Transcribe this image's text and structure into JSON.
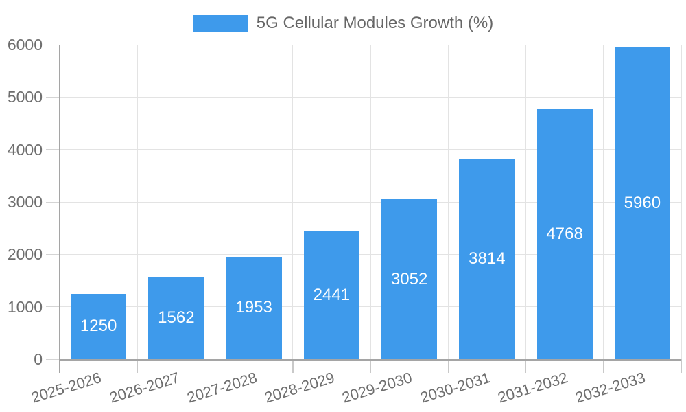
{
  "legend": {
    "label": "5G Cellular Modules Growth (%)",
    "swatch_color": "#3E9AEB"
  },
  "chart_data": {
    "type": "bar",
    "title": "5G Cellular Modules Growth (%)",
    "categories": [
      "2025-2026",
      "2026-2027",
      "2027-2028",
      "2028-2029",
      "2029-2030",
      "2030-2031",
      "2031-2032",
      "2032-2033"
    ],
    "values": [
      1250,
      1562,
      1953,
      2441,
      3052,
      3814,
      4768,
      5960
    ],
    "value_labels": [
      "1250",
      "1562",
      "1953",
      "2441",
      "3052",
      "3814",
      "4768",
      "5960"
    ],
    "xlabel": "",
    "ylabel": "",
    "ylim": [
      0,
      6000
    ],
    "yticks": [
      0,
      1000,
      2000,
      3000,
      4000,
      5000,
      6000
    ],
    "ytick_labels": [
      "0",
      "1000",
      "2000",
      "3000",
      "4000",
      "5000",
      "6000"
    ],
    "grid": true,
    "legend_position": "top-center",
    "bar_color": "#3E9AEB",
    "value_label_color": "#ffffff",
    "axis_color": "#a5a5a5",
    "grid_color": "#e3e3e3",
    "text_color": "#6e6e6e"
  }
}
